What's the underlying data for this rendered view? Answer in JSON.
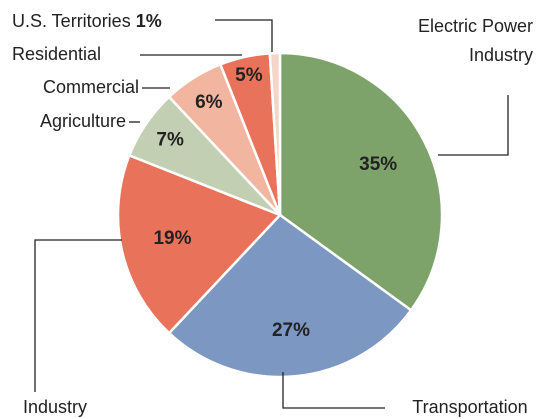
{
  "chart_data": {
    "type": "pie",
    "categories": [
      "Electric Power Industry",
      "Transportation",
      "Industry",
      "Agriculture",
      "Commercial",
      "Residential",
      "U.S. Territories"
    ],
    "values": [
      35,
      27,
      19,
      7,
      6,
      5,
      1
    ],
    "value_labels": [
      "35%",
      "27%",
      "19%",
      "7%",
      "6%",
      "5%",
      "1%"
    ],
    "colors": [
      "#7ea36a",
      "#7b97c2",
      "#e8735a",
      "#c2cfb2",
      "#f2b6a0",
      "#e8735a",
      "#f5d5c8"
    ]
  }
}
